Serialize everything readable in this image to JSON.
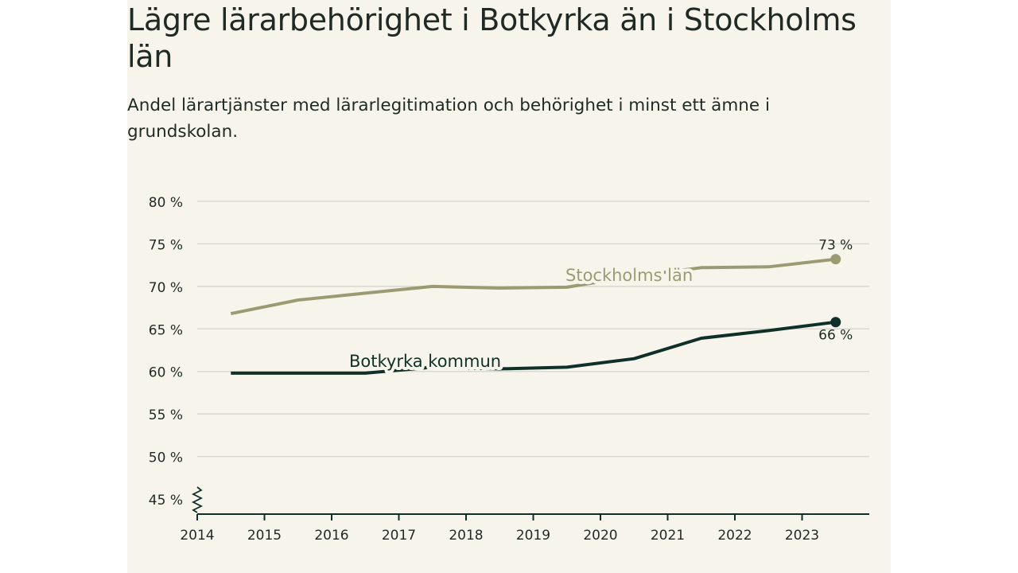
{
  "title": "Lägre lärarbehörighet i Botkyrka än i Stockholms län",
  "subtitle": "Andel lärartjänster med lärarlegitimation och behörighet i minst ett ämne i grundskolan.",
  "chart_data": {
    "type": "line",
    "title": "Lägre lärarbehörighet i Botkyrka än i Stockholms län",
    "subtitle": "Andel lärartjänster med lärarlegitimation och behörighet i minst ett ämne i grundskolan.",
    "xlabel": "",
    "ylabel": "",
    "x": [
      2014.5,
      2015.5,
      2016.5,
      2017.5,
      2018.5,
      2019.5,
      2020.5,
      2021.5,
      2022.5,
      2023.5
    ],
    "xlim": [
      2014,
      2024
    ],
    "ylim": [
      43,
      80
    ],
    "x_ticks": [
      2014,
      2015,
      2016,
      2017,
      2018,
      2019,
      2020,
      2021,
      2022,
      2023
    ],
    "x_tick_labels": [
      "2014",
      "2015",
      "2016",
      "2017",
      "2018",
      "2019",
      "2020",
      "2021",
      "2022",
      "2023"
    ],
    "y_ticks": [
      45,
      50,
      55,
      60,
      65,
      70,
      75,
      80
    ],
    "y_tick_labels": [
      "45 %",
      "50 %",
      "55 %",
      "60 %",
      "65 %",
      "70 %",
      "75 %",
      "80 %"
    ],
    "grid": true,
    "axis_break": true,
    "series": [
      {
        "name": "Stockholms län",
        "color": "#9c9a72",
        "values": [
          66.8,
          68.4,
          69.2,
          70.0,
          69.8,
          69.9,
          71.2,
          72.2,
          72.3,
          73.2
        ],
        "end_label": "73 %"
      },
      {
        "name": "Botkyrka kommun",
        "color": "#0f3028",
        "values": [
          59.8,
          59.8,
          59.8,
          60.5,
          60.3,
          60.5,
          61.5,
          63.9,
          64.8,
          65.8
        ],
        "end_label": "66 %"
      }
    ]
  },
  "colors": {
    "background": "#f7f5eb",
    "text": "#1f2a24",
    "grid": "#d9d8d1",
    "axis": "#0f3028"
  }
}
